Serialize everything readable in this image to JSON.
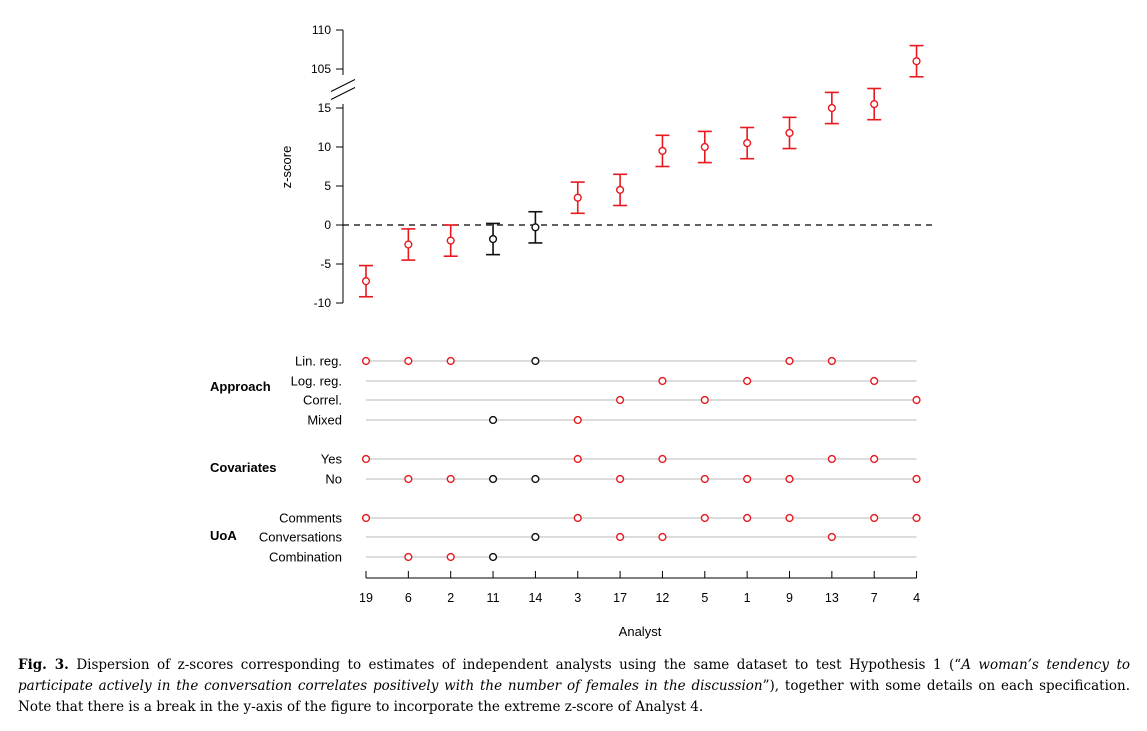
{
  "chart_data": {
    "type": "scatter",
    "ylabel": "z-score",
    "xlabel": "Analyst",
    "yticks_lower": [
      -10,
      -5,
      0,
      5,
      10,
      15
    ],
    "yticks_upper": [
      105,
      110
    ],
    "ylim": [
      -10,
      110
    ],
    "axis_break": [
      17,
      103
    ],
    "reference_line": 0,
    "colors": {
      "significant": "#e8191e",
      "not_significant": "#111111",
      "track": "#c8c8c8"
    },
    "analysts": [
      "19",
      "6",
      "2",
      "11",
      "14",
      "3",
      "17",
      "12",
      "5",
      "1",
      "9",
      "13",
      "7",
      "4"
    ],
    "z_scores": [
      -7.2,
      -2.5,
      -2.0,
      -1.8,
      -0.3,
      3.5,
      4.5,
      9.5,
      10.0,
      10.5,
      11.8,
      15.0,
      15.5,
      106.0
    ],
    "ci_low": [
      -9.2,
      -4.5,
      -4.0,
      -3.8,
      -2.3,
      1.5,
      2.5,
      7.5,
      8.0,
      8.5,
      9.8,
      13.0,
      13.5,
      104.0
    ],
    "ci_high": [
      -5.2,
      -0.5,
      0.0,
      0.2,
      1.7,
      5.5,
      6.5,
      11.5,
      12.0,
      12.5,
      13.8,
      17.0,
      17.5,
      108.0
    ],
    "significant": [
      true,
      true,
      true,
      false,
      false,
      true,
      true,
      true,
      true,
      true,
      true,
      true,
      true,
      true
    ],
    "groups": [
      {
        "name": "Approach",
        "rows": [
          {
            "label": "Lin. reg.",
            "analysts": [
              "19",
              "6",
              "2",
              "14",
              "9",
              "13"
            ]
          },
          {
            "label": "Log. reg.",
            "analysts": [
              "12",
              "1",
              "7"
            ]
          },
          {
            "label": "Correl.",
            "analysts": [
              "17",
              "5",
              "4"
            ]
          },
          {
            "label": "Mixed",
            "analysts": [
              "11",
              "3"
            ]
          }
        ]
      },
      {
        "name": "Covariates",
        "rows": [
          {
            "label": "Yes",
            "analysts": [
              "19",
              "3",
              "12",
              "13",
              "7"
            ]
          },
          {
            "label": "No",
            "analysts": [
              "6",
              "2",
              "11",
              "14",
              "17",
              "5",
              "1",
              "9",
              "4"
            ]
          }
        ]
      },
      {
        "name": "UoA",
        "rows": [
          {
            "label": "Comments",
            "analysts": [
              "19",
              "3",
              "5",
              "1",
              "9",
              "7",
              "4"
            ]
          },
          {
            "label": "Conversations",
            "analysts": [
              "14",
              "17",
              "12",
              "13"
            ]
          },
          {
            "label": "Combination",
            "analysts": [
              "6",
              "2",
              "11"
            ]
          }
        ]
      }
    ]
  },
  "caption": {
    "label": "Fig. 3.",
    "text_before": " Dispersion of z-scores corresponding to estimates of independent analysts using the same dataset to test Hypothesis 1 (“",
    "quote": "A woman’s tendency to participate actively in the conversation correlates positively with the number of females in the discussion",
    "text_after": "”), together with some details on each specification. Note that there is a break in the y-axis of the figure to incorporate the extreme z-score of Analyst 4."
  }
}
